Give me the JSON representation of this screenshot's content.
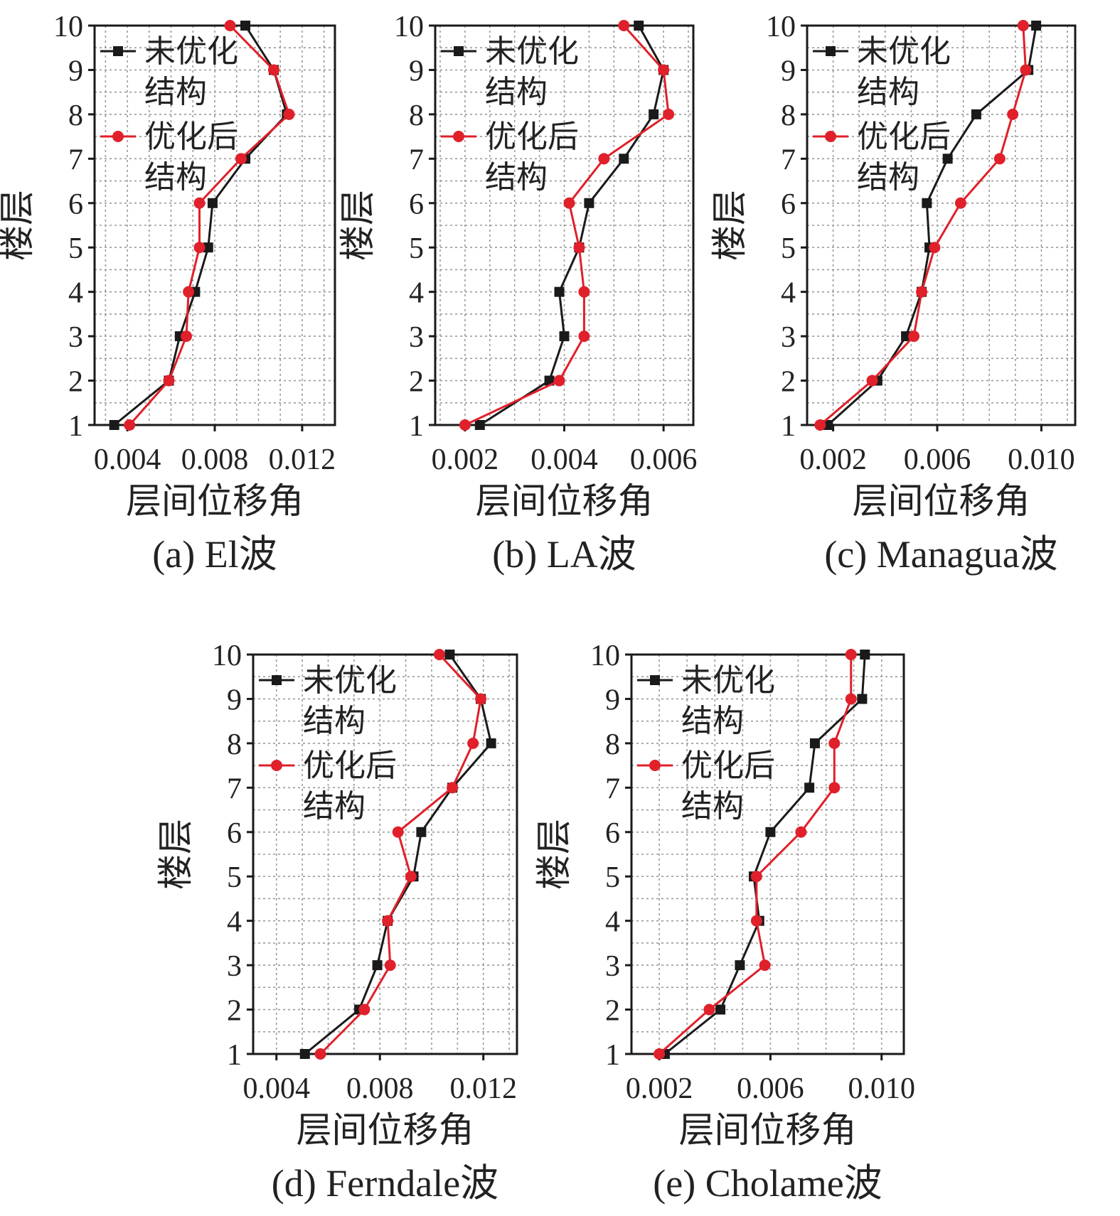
{
  "colors": {
    "unoptimized": "#1a1a1a",
    "optimized": "#e0202a",
    "grid": "#9a9a9a"
  },
  "chart_data": [
    {
      "id": "a",
      "type": "line",
      "caption": "(a) El波",
      "xlabel": "层间位移角",
      "ylabel": "楼层",
      "xlim": [
        0.0025,
        0.0135
      ],
      "ylim": [
        1,
        10
      ],
      "xticks": [
        "0.004",
        "0.008",
        "0.012"
      ],
      "xtick_values": [
        0.004,
        0.008,
        0.012
      ],
      "yticks": [
        "1",
        "2",
        "3",
        "4",
        "5",
        "6",
        "7",
        "8",
        "9",
        "10"
      ],
      "y": [
        1,
        2,
        3,
        4,
        5,
        6,
        7,
        8,
        9,
        10
      ],
      "series": [
        {
          "name": "未优化\n结构",
          "marker": "square",
          "values": [
            0.0034,
            0.0059,
            0.0064,
            0.0071,
            0.0077,
            0.0079,
            0.0094,
            0.0113,
            0.0107,
            0.0094
          ]
        },
        {
          "name": "优化后\n结构",
          "marker": "circle",
          "values": [
            0.0041,
            0.0059,
            0.0067,
            0.0068,
            0.0073,
            0.0073,
            0.0092,
            0.0114,
            0.0107,
            0.0087
          ]
        }
      ],
      "legend": "top-left"
    },
    {
      "id": "b",
      "type": "line",
      "caption": "(b) LA波",
      "xlabel": "层间位移角",
      "ylabel": "楼层",
      "xlim": [
        0.0014,
        0.0066
      ],
      "ylim": [
        1,
        10
      ],
      "xticks": [
        "0.002",
        "0.004",
        "0.006"
      ],
      "xtick_values": [
        0.002,
        0.004,
        0.006
      ],
      "yticks": [
        "1",
        "2",
        "3",
        "4",
        "5",
        "6",
        "7",
        "8",
        "9",
        "10"
      ],
      "y": [
        1,
        2,
        3,
        4,
        5,
        6,
        7,
        8,
        9,
        10
      ],
      "series": [
        {
          "name": "未优化\n结构",
          "marker": "square",
          "values": [
            0.0023,
            0.0037,
            0.004,
            0.0039,
            0.0043,
            0.0045,
            0.0052,
            0.0058,
            0.006,
            0.0055
          ]
        },
        {
          "name": "优化后\n结构",
          "marker": "circle",
          "values": [
            0.002,
            0.0039,
            0.0044,
            0.0044,
            0.0043,
            0.0041,
            0.0048,
            0.0061,
            0.006,
            0.0052
          ]
        }
      ],
      "legend": "top-left"
    },
    {
      "id": "c",
      "type": "line",
      "caption": "(c) Managua波",
      "xlabel": "层间位移角",
      "ylabel": "楼层",
      "xlim": [
        0.001,
        0.0113
      ],
      "ylim": [
        1,
        10
      ],
      "xticks": [
        "0.002",
        "0.006",
        "0.010"
      ],
      "xtick_values": [
        0.002,
        0.006,
        0.01
      ],
      "yticks": [
        "1",
        "2",
        "3",
        "4",
        "5",
        "6",
        "7",
        "8",
        "9",
        "10"
      ],
      "y": [
        1,
        2,
        3,
        4,
        5,
        6,
        7,
        8,
        9,
        10
      ],
      "series": [
        {
          "name": "未优化\n结构",
          "marker": "square",
          "values": [
            0.0018,
            0.0037,
            0.0048,
            0.0054,
            0.0057,
            0.0056,
            0.0064,
            0.0075,
            0.0095,
            0.0098
          ]
        },
        {
          "name": "优化后\n结构",
          "marker": "circle",
          "values": [
            0.0015,
            0.0035,
            0.0051,
            0.0054,
            0.0059,
            0.0069,
            0.0084,
            0.0089,
            0.0094,
            0.0093
          ]
        }
      ],
      "legend": "top-left"
    },
    {
      "id": "d",
      "type": "line",
      "caption": "(d) Ferndale波",
      "xlabel": "层间位移角",
      "ylabel": "楼层",
      "xlim": [
        0.0031,
        0.0133
      ],
      "ylim": [
        1,
        10
      ],
      "xticks": [
        "0.004",
        "0.008",
        "0.012"
      ],
      "xtick_values": [
        0.004,
        0.008,
        0.012
      ],
      "yticks": [
        "1",
        "2",
        "3",
        "4",
        "5",
        "6",
        "7",
        "8",
        "9",
        "10"
      ],
      "y": [
        1,
        2,
        3,
        4,
        5,
        6,
        7,
        8,
        9,
        10
      ],
      "series": [
        {
          "name": "未优化\n结构",
          "marker": "square",
          "values": [
            0.0051,
            0.0072,
            0.0079,
            0.0083,
            0.0093,
            0.0096,
            0.0108,
            0.0123,
            0.0119,
            0.0107
          ]
        },
        {
          "name": "优化后\n结构",
          "marker": "circle",
          "values": [
            0.0057,
            0.0074,
            0.0084,
            0.0083,
            0.0092,
            0.0087,
            0.0108,
            0.0116,
            0.0119,
            0.0103
          ]
        }
      ],
      "legend": "top-left"
    },
    {
      "id": "e",
      "type": "line",
      "caption": "(e) Cholame波",
      "xlabel": "层间位移角",
      "ylabel": "楼层",
      "xlim": [
        0.001,
        0.0108
      ],
      "ylim": [
        1,
        10
      ],
      "xticks": [
        "0.002",
        "0.006",
        "0.010"
      ],
      "xtick_values": [
        0.002,
        0.006,
        0.01
      ],
      "yticks": [
        "1",
        "2",
        "3",
        "4",
        "5",
        "6",
        "7",
        "8",
        "9",
        "10"
      ],
      "y": [
        1,
        2,
        3,
        4,
        5,
        6,
        7,
        8,
        9,
        10
      ],
      "series": [
        {
          "name": "未优化\n结构",
          "marker": "square",
          "values": [
            0.0022,
            0.0042,
            0.0049,
            0.0056,
            0.0054,
            0.006,
            0.0074,
            0.0076,
            0.0093,
            0.0094
          ]
        },
        {
          "name": "优化后\n结构",
          "marker": "circle",
          "values": [
            0.002,
            0.0038,
            0.0058,
            0.0055,
            0.0055,
            0.0071,
            0.0083,
            0.0083,
            0.0089,
            0.0089
          ]
        }
      ],
      "legend": "top-left"
    }
  ]
}
